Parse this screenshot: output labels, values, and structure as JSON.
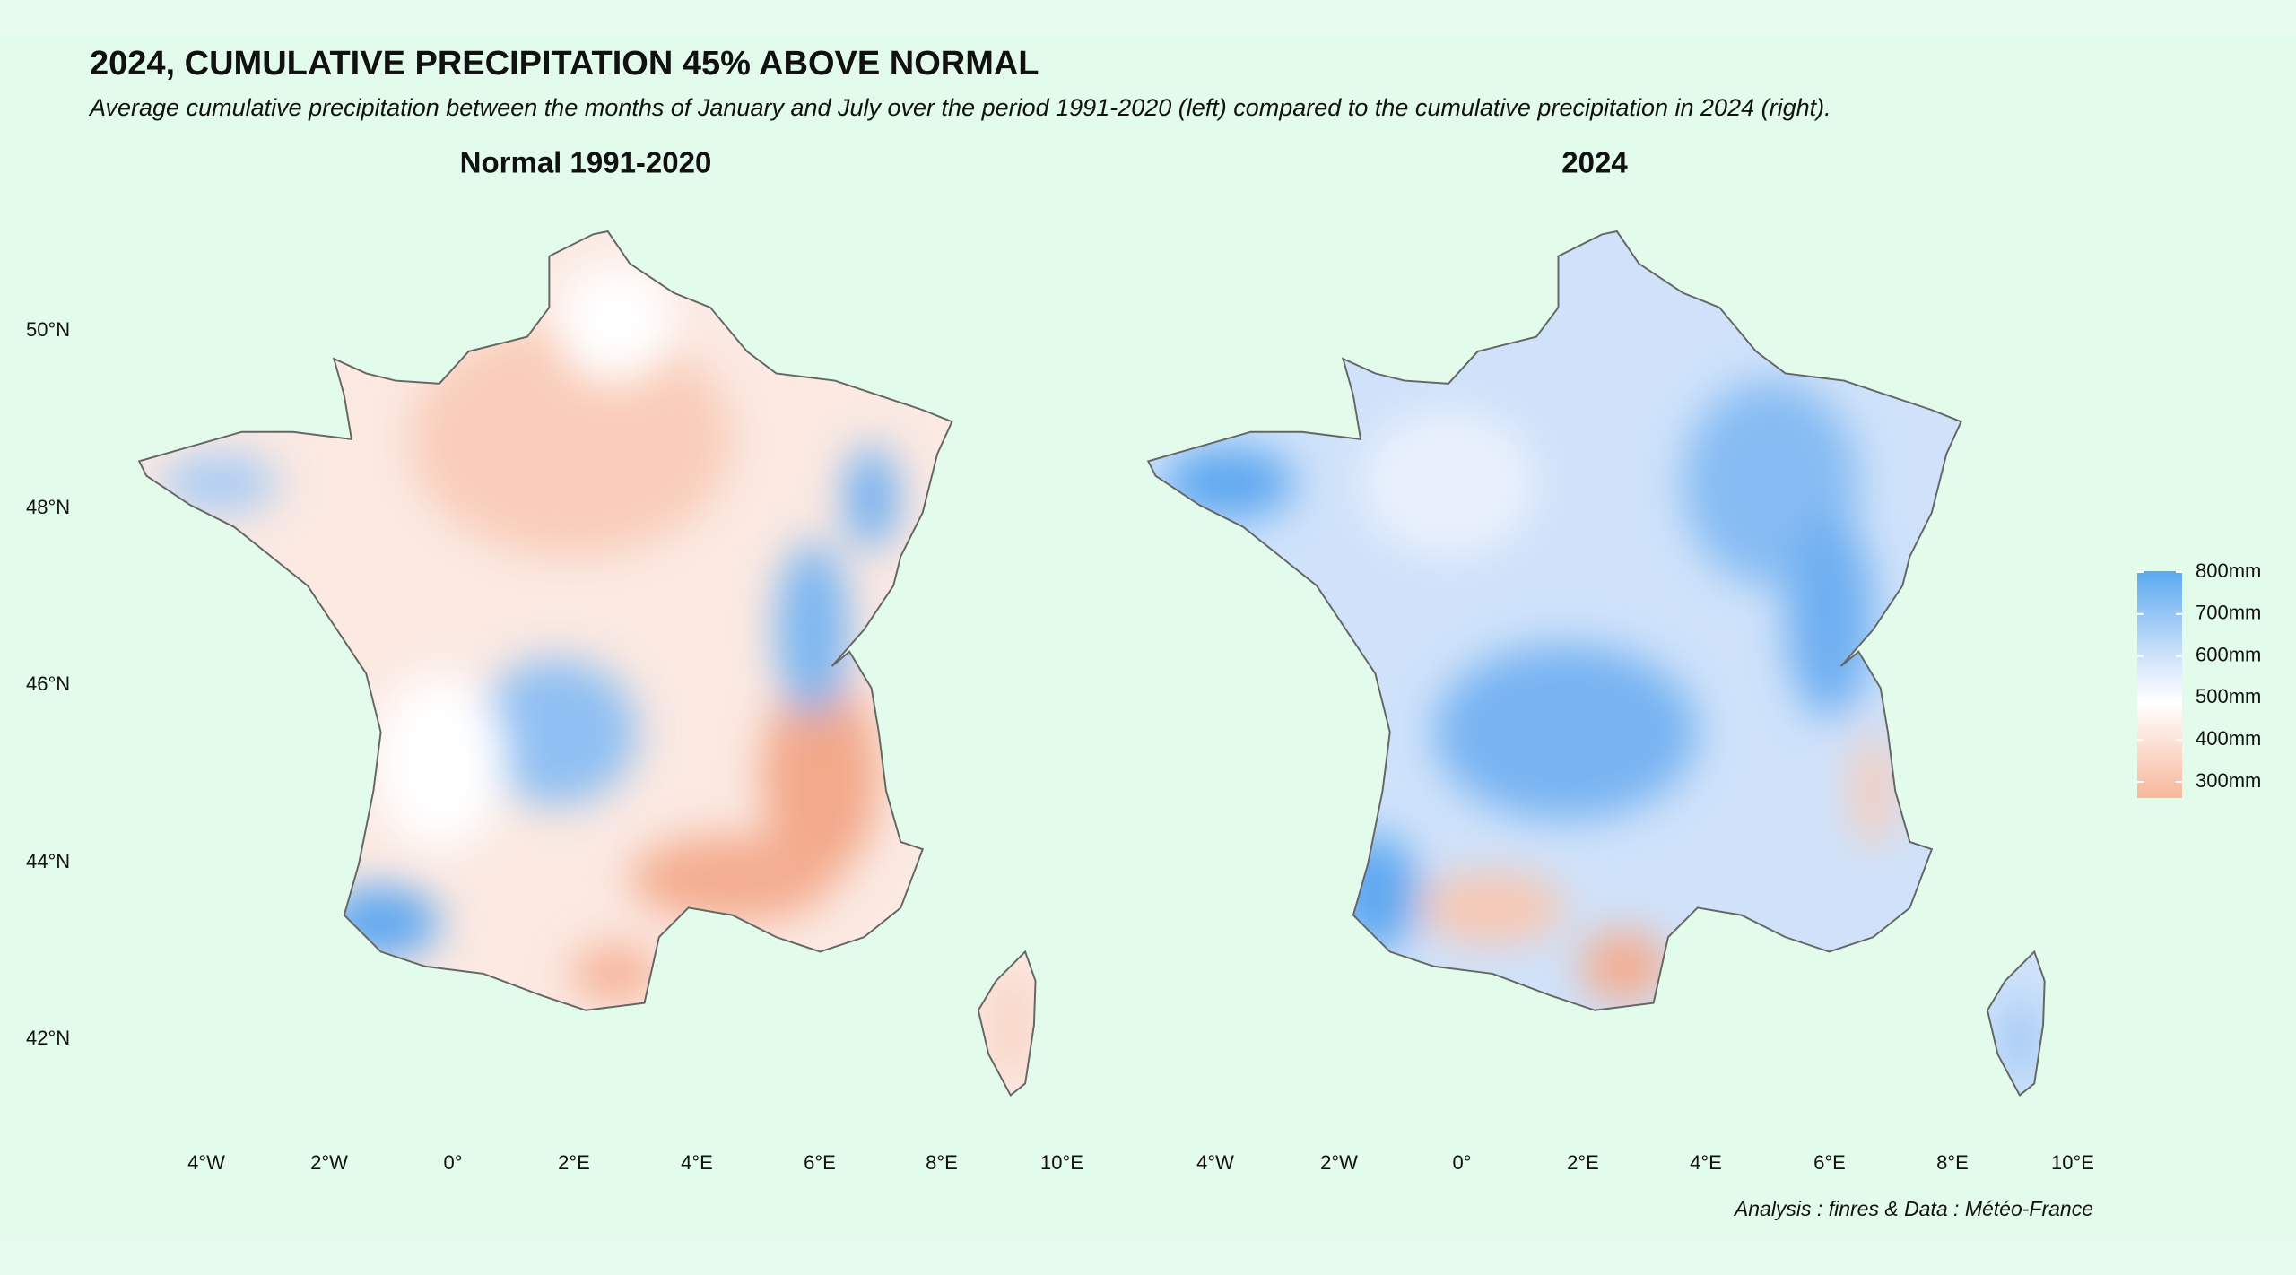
{
  "header": {
    "title": "2024, CUMULATIVE PRECIPITATION 45% ABOVE NORMAL",
    "subtitle": "Average cumulative precipitation between the months of January and July over the period 1991-2020 (left) compared to the cumulative precipitation in 2024 (right)."
  },
  "panels": [
    {
      "title": "Normal 1991-2020"
    },
    {
      "title": "2024"
    }
  ],
  "latitude_labels": [
    "50°N",
    "48°N",
    "46°N",
    "44°N",
    "42°N"
  ],
  "longitude_labels": [
    "4°W",
    "2°W",
    "0°",
    "2°E",
    "4°E",
    "6°E",
    "8°E",
    "10°E"
  ],
  "legend": {
    "labels": [
      "800mm",
      "700mm",
      "600mm",
      "500mm",
      "400mm",
      "300mm"
    ]
  },
  "caption": "Analysis : finres & Data : Météo-France"
}
